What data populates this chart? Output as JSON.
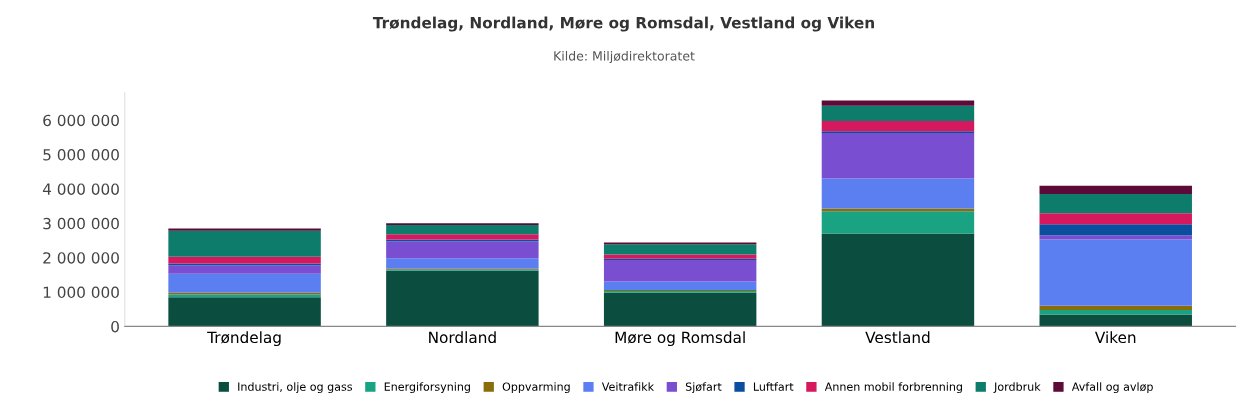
{
  "chart_data": {
    "type": "bar",
    "stacked": true,
    "title": "Trøndelag, Nordland, Møre og Romsdal, Vestland og Viken",
    "subtitle": "Kilde: Miljødirektoratet",
    "categories": [
      "Trøndelag",
      "Nordland",
      "Møre og Romsdal",
      "Vestland",
      "Viken"
    ],
    "series": [
      {
        "name": "Industri, olje og gass",
        "color": "#0b4d3f",
        "values": [
          850000,
          1620000,
          980000,
          2700000,
          350000
        ]
      },
      {
        "name": "Energiforsyning",
        "color": "#19a383",
        "values": [
          80000,
          30000,
          50000,
          650000,
          130000
        ]
      },
      {
        "name": "Oppvarming",
        "color": "#8a6d0b",
        "values": [
          50000,
          30000,
          30000,
          80000,
          120000
        ]
      },
      {
        "name": "Veitrafikk",
        "color": "#5b7ff0",
        "values": [
          550000,
          300000,
          250000,
          870000,
          1930000
        ]
      },
      {
        "name": "Sjøfart",
        "color": "#7a4ed0",
        "values": [
          250000,
          500000,
          620000,
          1330000,
          120000
        ]
      },
      {
        "name": "Luftfart",
        "color": "#0a4f9e",
        "values": [
          50000,
          50000,
          40000,
          50000,
          320000
        ]
      },
      {
        "name": "Annen mobil forbrenning",
        "color": "#d6185e",
        "values": [
          200000,
          150000,
          120000,
          300000,
          320000
        ]
      },
      {
        "name": "Jordbruk",
        "color": "#0e7c6b",
        "values": [
          750000,
          270000,
          300000,
          440000,
          560000
        ]
      },
      {
        "name": "Avfall og avløp",
        "color": "#5c0a37",
        "values": [
          70000,
          50000,
          50000,
          150000,
          240000
        ]
      }
    ],
    "ylim": [
      0,
      6800000
    ],
    "yticks": [
      {
        "value": 0,
        "label": "0"
      },
      {
        "value": 1000000,
        "label": "1 000 000"
      },
      {
        "value": 2000000,
        "label": "2 000 000"
      },
      {
        "value": 3000000,
        "label": "3 000 000"
      },
      {
        "value": 4000000,
        "label": "4 000 000"
      },
      {
        "value": 5000000,
        "label": "5 000 000"
      },
      {
        "value": 6000000,
        "label": "6 000 000"
      }
    ],
    "grid": false,
    "legend": "bottom"
  }
}
